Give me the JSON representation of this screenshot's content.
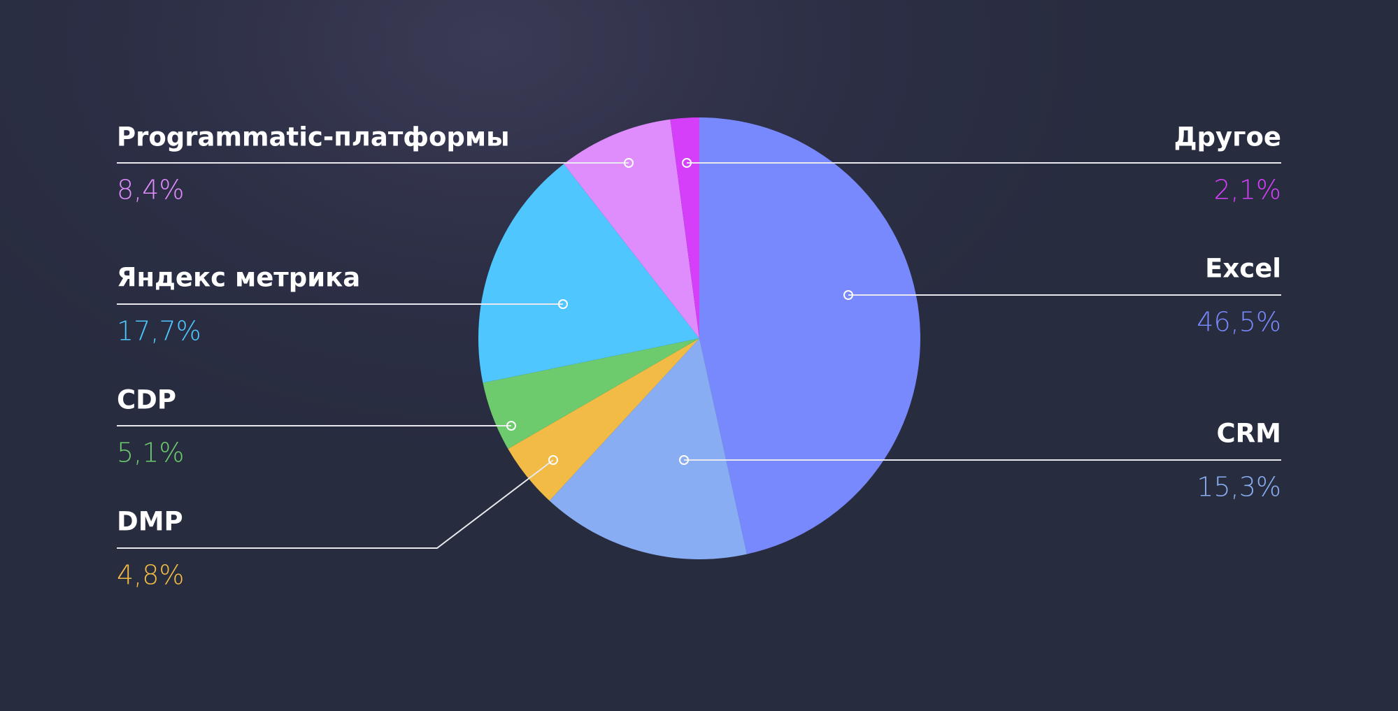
{
  "chart_data": {
    "type": "pie",
    "categories": [
      "Excel",
      "CRM",
      "DMP",
      "CDP",
      "Яндекс метрика",
      "Programmatic-платформы",
      "Другое"
    ],
    "values": [
      46.5,
      15.3,
      4.8,
      5.1,
      17.7,
      8.4,
      2.1
    ],
    "value_labels": [
      "46,5%",
      "15,3%",
      "4,8%",
      "5,1%",
      "17,7%",
      "8,4%",
      "2,1%"
    ],
    "colors": [
      "#7889fe",
      "#89adf2",
      "#f2bb45",
      "#6dcb6d",
      "#4fc6fd",
      "#df8cfd",
      "#d63ffa"
    ]
  }
}
